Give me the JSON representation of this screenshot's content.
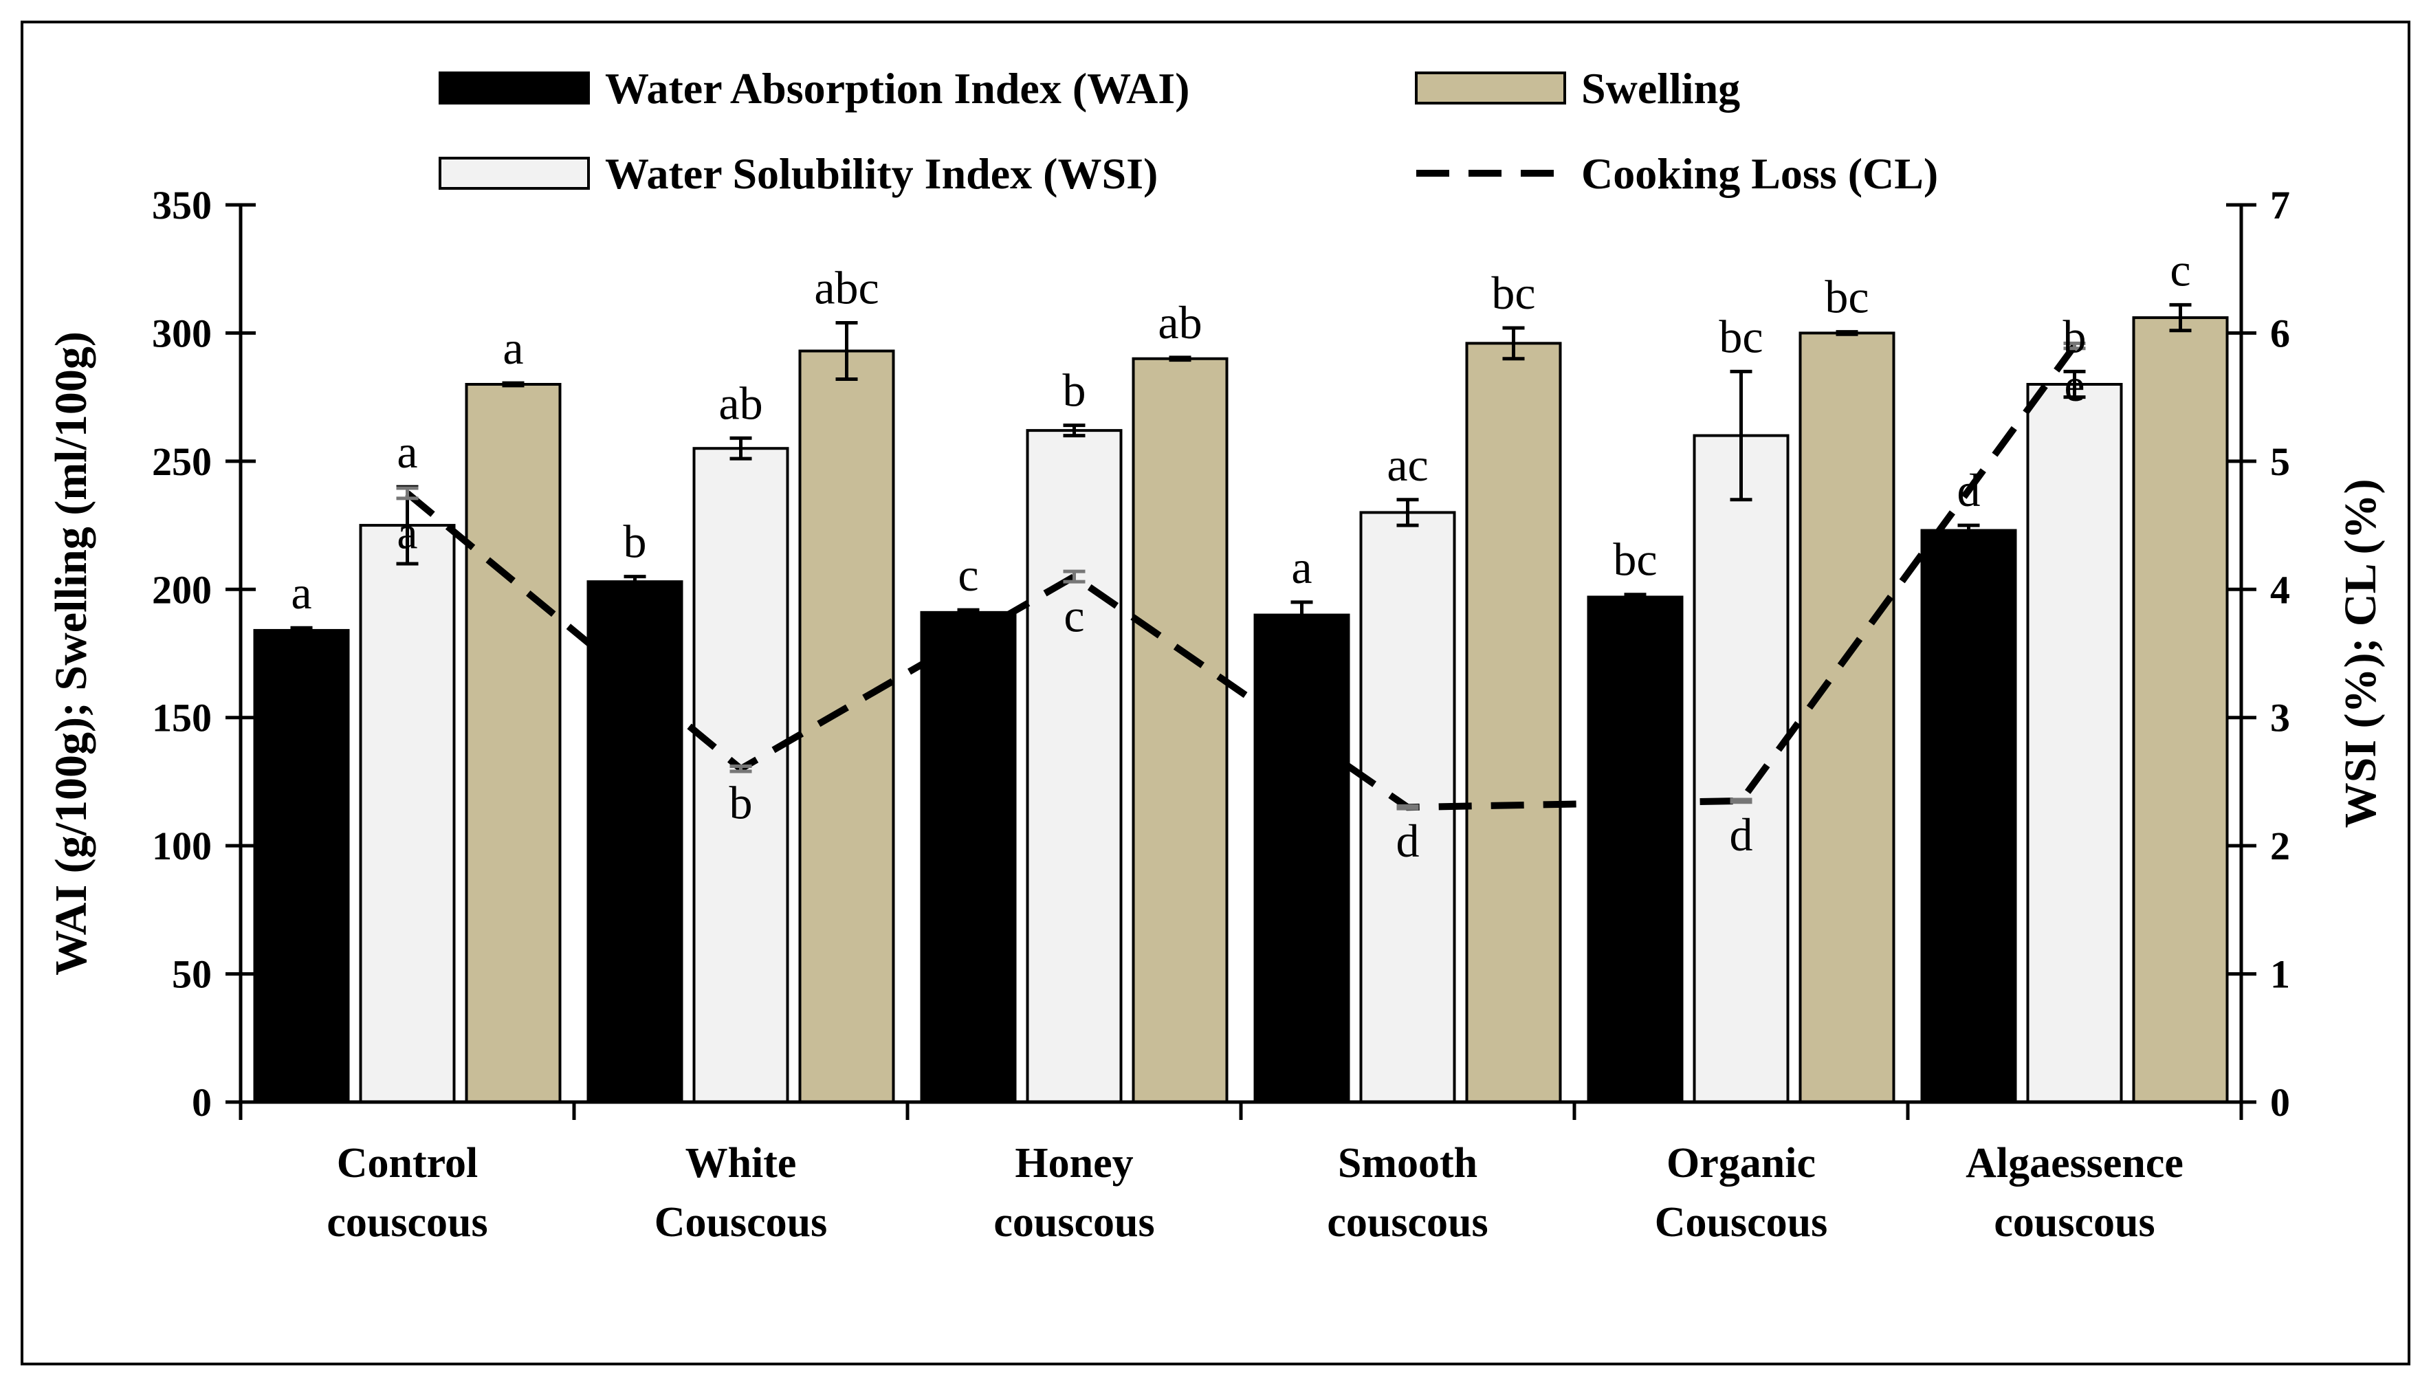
{
  "chart_data": {
    "type": "bar",
    "title": "",
    "categories": [
      [
        "Control",
        "couscous"
      ],
      [
        "White",
        "Couscous"
      ],
      [
        "Honey",
        "couscous"
      ],
      [
        "Smooth",
        "couscous"
      ],
      [
        "Organic",
        "Couscous"
      ],
      [
        "Algaessence",
        "couscous"
      ]
    ],
    "y_left": {
      "label": "WAI (g/100g); Swelling (ml/100g)",
      "min": 0,
      "max": 350,
      "step": 50
    },
    "y_right": {
      "label": "WSI (%); CL (%)",
      "min": 0,
      "max": 7,
      "step": 1
    },
    "series": [
      {
        "name": "Water Absorption Index (WAI)",
        "axis": "left",
        "kind": "bar",
        "color": "#000000",
        "values": [
          184,
          203,
          191,
          190,
          197,
          223
        ],
        "errors": [
          1,
          2,
          1,
          5,
          1,
          2
        ],
        "letters": [
          "a",
          "b",
          "c",
          "a",
          "bc",
          "d"
        ]
      },
      {
        "name": "Water Solubility Index (WSI)",
        "axis": "right",
        "kind": "bar",
        "color": "#f2f2f2",
        "values": [
          4.5,
          5.1,
          5.24,
          4.6,
          5.2,
          5.6
        ],
        "errors": [
          0.3,
          0.08,
          0.04,
          0.1,
          0.5,
          0.1
        ],
        "letters": [
          "a",
          "ab",
          "b",
          "ac",
          "bc",
          "b"
        ]
      },
      {
        "name": "Swelling",
        "axis": "left",
        "kind": "bar",
        "color": "#c8bd98",
        "values": [
          280,
          293,
          290,
          296,
          300,
          306
        ],
        "errors": [
          0.5,
          11,
          0.5,
          6,
          0.5,
          5
        ],
        "letters": [
          "a",
          "abc",
          "ab",
          "bc",
          "bc",
          "c"
        ]
      },
      {
        "name": "Cooking Loss (CL)",
        "axis": "right",
        "kind": "line",
        "style": "dashed",
        "color": "#000000",
        "values": [
          4.75,
          2.6,
          4.1,
          2.3,
          2.35,
          5.9
        ],
        "errors": [
          0.04,
          0.02,
          0.04,
          0.01,
          0.01,
          0.02
        ],
        "letters": [
          "a",
          "b",
          "c",
          "d",
          "d",
          "e"
        ]
      }
    ],
    "legend": {
      "position": "top",
      "entries": [
        "Water Absorption Index (WAI)",
        "Swelling",
        "Water Solubility Index (WSI)",
        "Cooking Loss (CL)"
      ]
    }
  }
}
